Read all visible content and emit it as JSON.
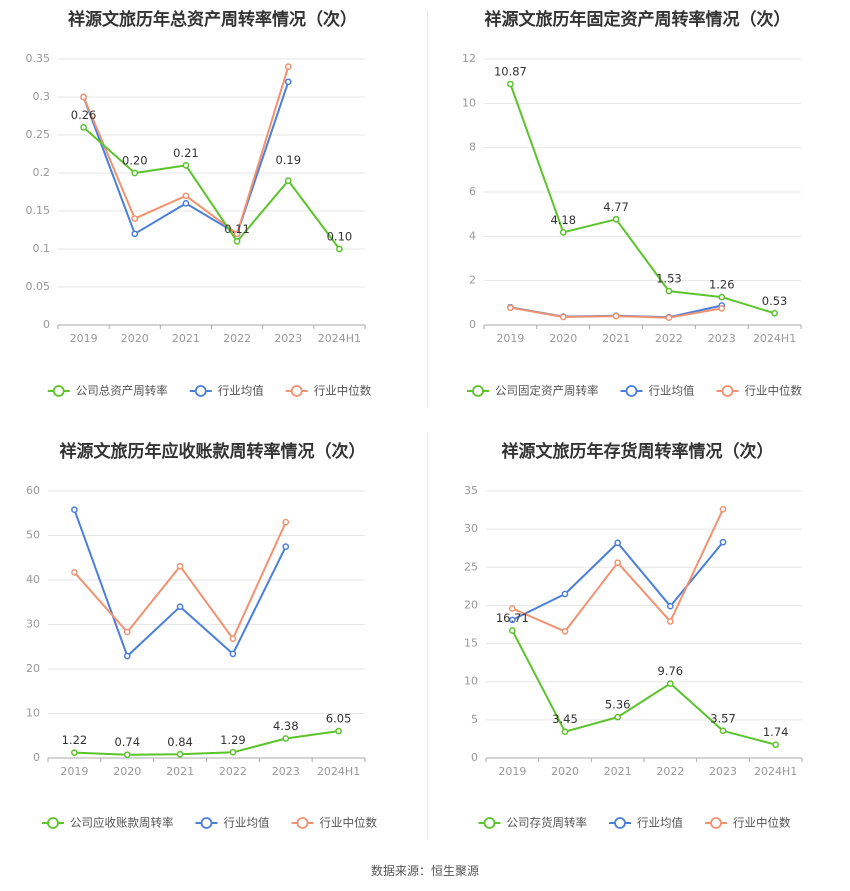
{
  "colors": {
    "company": "#5ac42a",
    "avg": "#4a7fdc",
    "median": "#f39270",
    "grid": "#e6e6e6",
    "axis": "#999999"
  },
  "legend": {
    "avg_label": "行业均值",
    "median_label": "行业中位数"
  },
  "footer": "数据来源：恒生聚源",
  "chart_data": [
    {
      "type": "line",
      "title": "祥源文旅历年总资产周转率情况（次）",
      "categories": [
        "2019",
        "2020",
        "2021",
        "2022",
        "2023",
        "2024H1"
      ],
      "ylim": [
        0,
        0.35
      ],
      "yticks": [
        "0",
        "0.05",
        "0.1",
        "0.15",
        "0.2",
        "0.25",
        "0.3",
        "0.35"
      ],
      "series": [
        {
          "name": "公司总资产周转率",
          "key": "company",
          "values": [
            0.26,
            0.2,
            0.21,
            0.11,
            0.19,
            0.1
          ],
          "labels": [
            "0.26",
            "0.20",
            "0.21",
            "0.11",
            "0.19",
            "0.10"
          ]
        },
        {
          "name": "行业均值",
          "key": "avg",
          "values": [
            0.3,
            0.12,
            0.16,
            0.12,
            0.32,
            null
          ]
        },
        {
          "name": "行业中位数",
          "key": "median",
          "values": [
            0.3,
            0.14,
            0.17,
            0.12,
            0.34,
            null
          ]
        }
      ]
    },
    {
      "type": "line",
      "title": "祥源文旅历年固定资产周转率情况（次）",
      "categories": [
        "2019",
        "2020",
        "2021",
        "2022",
        "2023",
        "2024H1"
      ],
      "ylim": [
        0,
        12
      ],
      "yticks": [
        "0",
        "2",
        "4",
        "6",
        "8",
        "10",
        "12"
      ],
      "series": [
        {
          "name": "公司固定资产周转率",
          "key": "company",
          "values": [
            10.87,
            4.18,
            4.77,
            1.53,
            1.26,
            0.53
          ],
          "labels": [
            "10.87",
            "4.18",
            "4.77",
            "1.53",
            "1.26",
            "0.53"
          ]
        },
        {
          "name": "行业均值",
          "key": "avg",
          "values": [
            0.8,
            0.38,
            0.42,
            0.35,
            0.88,
            null
          ]
        },
        {
          "name": "行业中位数",
          "key": "median",
          "values": [
            0.78,
            0.36,
            0.4,
            0.33,
            0.75,
            null
          ]
        }
      ]
    },
    {
      "type": "line",
      "title": "祥源文旅历年应收账款周转率情况（次）",
      "categories": [
        "2019",
        "2020",
        "2021",
        "2022",
        "2023",
        "2024H1"
      ],
      "ylim": [
        0,
        60
      ],
      "yticks": [
        "0",
        "10",
        "20",
        "30",
        "40",
        "50",
        "60"
      ],
      "series": [
        {
          "name": "公司应收账款周转率",
          "key": "company",
          "values": [
            1.22,
            0.74,
            0.84,
            1.29,
            4.38,
            6.05
          ],
          "labels": [
            "1.22",
            "0.74",
            "0.84",
            "1.29",
            "4.38",
            "6.05"
          ]
        },
        {
          "name": "行业均值",
          "key": "avg",
          "values": [
            55.8,
            22.9,
            34.0,
            23.4,
            47.5,
            null
          ]
        },
        {
          "name": "行业中位数",
          "key": "median",
          "values": [
            41.7,
            28.3,
            43.1,
            26.8,
            53.0,
            null
          ]
        }
      ]
    },
    {
      "type": "line",
      "title": "祥源文旅历年存货周转率情况（次）",
      "categories": [
        "2019",
        "2020",
        "2021",
        "2022",
        "2023",
        "2024H1"
      ],
      "ylim": [
        0,
        35
      ],
      "yticks": [
        "0",
        "5",
        "10",
        "15",
        "20",
        "25",
        "30",
        "35"
      ],
      "series": [
        {
          "name": "公司存货周转率",
          "key": "company",
          "values": [
            16.71,
            3.45,
            5.36,
            9.76,
            3.57,
            1.74
          ],
          "labels": [
            "16.71",
            "3.45",
            "5.36",
            "9.76",
            "3.57",
            "1.74"
          ]
        },
        {
          "name": "行业均值",
          "key": "avg",
          "values": [
            18.1,
            21.5,
            28.2,
            19.9,
            28.3,
            null
          ]
        },
        {
          "name": "行业中位数",
          "key": "median",
          "values": [
            19.6,
            16.6,
            25.6,
            17.9,
            32.6,
            null
          ]
        }
      ]
    }
  ]
}
